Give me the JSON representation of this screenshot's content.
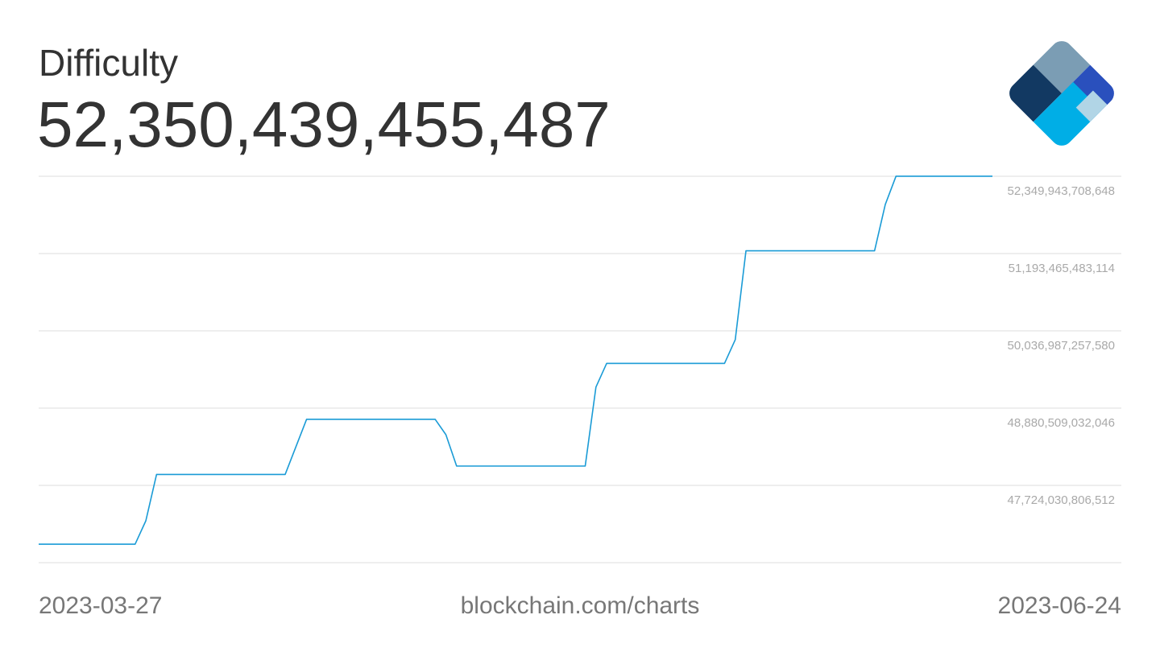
{
  "chart_data": {
    "type": "line",
    "title": "Difficulty",
    "current_value": "52,350,439,455,487",
    "source": "blockchain.com/charts",
    "color": "#1a9bd6",
    "grid": true,
    "x": [
      "2023-03-27",
      "2023-04-05",
      "2023-04-06",
      "2023-04-07",
      "2023-04-19",
      "2023-04-21",
      "2023-05-03",
      "2023-05-04",
      "2023-05-05",
      "2023-05-17",
      "2023-05-18",
      "2023-05-19",
      "2023-05-30",
      "2023-05-31",
      "2023-06-01",
      "2023-06-13",
      "2023-06-14",
      "2023-06-15",
      "2023-06-24"
    ],
    "values": [
      46843400286277,
      46843400286277,
      47194000000000,
      47887764338536,
      47887764338536,
      48712405953118,
      48712405953118,
      48483000000000,
      48013000000000,
      48013000000000,
      49194000000000,
      49549703178593,
      49549703178593,
      49904000000000,
      51234338863442,
      51234338863442,
      51928000000000,
      52350439455487,
      52350439455487
    ],
    "xlim": [
      "2023-03-27",
      "2023-06-24"
    ],
    "ylim": [
      46567552580978,
      52349943708648
    ],
    "yticks": [
      {
        "value": 52349943708648,
        "label": "52,349,943,708,648"
      },
      {
        "value": 51193465483114,
        "label": "51,193,465,483,114"
      },
      {
        "value": 50036987257580,
        "label": "50,036,987,257,580"
      },
      {
        "value": 48880509032046,
        "label": "48,880,509,032,046"
      },
      {
        "value": 47724030806512,
        "label": "47,724,030,806,512"
      }
    ]
  }
}
